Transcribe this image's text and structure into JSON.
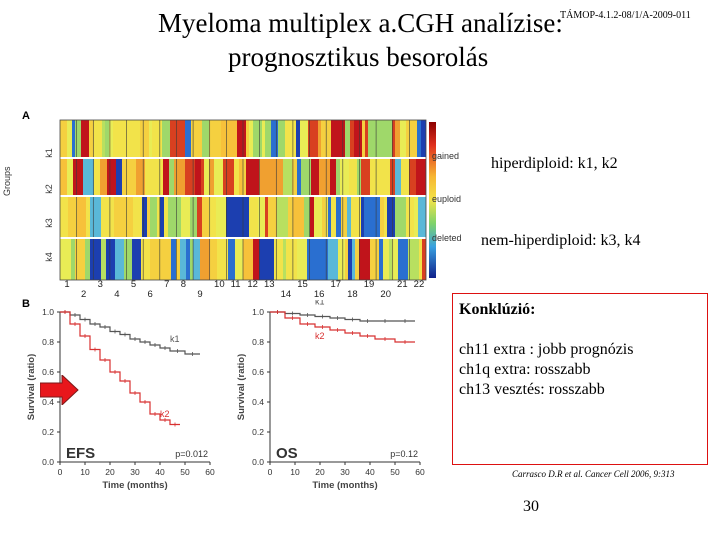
{
  "slide": {
    "title_line1": "Myeloma multiplex a.CGH analízise:",
    "title_line2": "prognosztikus besorolás",
    "project_code": "TÁMOP-4.1.2-08/1/A-2009-011",
    "page_number": "30"
  },
  "annotations": {
    "hyperdiploid": "hiperdiploid: k1, k2",
    "non_hyperdiploid": "nem-hiperdiploid: k3, k4"
  },
  "conclusion": {
    "heading": "Konklúzió:",
    "lines": [
      "ch11 extra : jobb prognózis",
      "ch1q extra: rosszabb",
      "ch13 vesztés: rosszabb"
    ]
  },
  "reference": "Carrasco D.R et al. Cancer Cell 2006, 9:313",
  "panel_a": {
    "letter": "A",
    "ylabel": "Groups",
    "groups": [
      "k1",
      "k2",
      "k3",
      "k4"
    ],
    "legend": [
      "gained",
      "euploid",
      "deleted"
    ],
    "chromosomes": [
      "1",
      "3",
      "5",
      "7",
      "8",
      "10",
      "11",
      "12",
      "13",
      "15",
      "17",
      "19",
      "21",
      "22",
      "2",
      "4",
      "6",
      "9",
      "14",
      "16",
      "18",
      "20"
    ],
    "colors": {
      "gained": "#c0141b",
      "euploid": "#f2e34a",
      "deleted": "#1c3fb0"
    }
  },
  "panel_b": {
    "letter": "B",
    "arrow_color": "#e8171c",
    "km_color_k1": "#555555",
    "km_color_k2": "#d83030"
  },
  "chart_data": [
    {
      "type": "line",
      "title": "EFS",
      "xlabel": "Time (months)",
      "ylabel": "Survival (ratio)",
      "xlim": [
        0,
        60
      ],
      "ylim": [
        0,
        1.0
      ],
      "x_ticks": [
        "0",
        "10",
        "20",
        "30",
        "40",
        "50",
        "60"
      ],
      "y_ticks": [
        "0.0",
        "0.2",
        "0.4",
        "0.6",
        "0.8",
        "1.0"
      ],
      "annotation": "p=0.012",
      "series": [
        {
          "name": "k1",
          "x": [
            0,
            4,
            8,
            12,
            16,
            20,
            24,
            28,
            32,
            36,
            40,
            44,
            50,
            56
          ],
          "y": [
            1.0,
            0.98,
            0.95,
            0.92,
            0.9,
            0.87,
            0.85,
            0.82,
            0.8,
            0.78,
            0.76,
            0.74,
            0.72,
            0.72
          ]
        },
        {
          "name": "k2",
          "x": [
            0,
            4,
            8,
            12,
            16,
            20,
            24,
            28,
            32,
            36,
            40,
            44,
            48
          ],
          "y": [
            1.0,
            0.92,
            0.84,
            0.75,
            0.68,
            0.6,
            0.54,
            0.46,
            0.4,
            0.32,
            0.28,
            0.25,
            0.25
          ]
        }
      ]
    },
    {
      "type": "line",
      "title": "OS",
      "xlabel": "Time (months)",
      "ylabel": "Survival (ratio)",
      "xlim": [
        0,
        60
      ],
      "ylim": [
        0,
        1.0
      ],
      "x_ticks": [
        "0",
        "10",
        "20",
        "30",
        "40",
        "50",
        "60"
      ],
      "y_ticks": [
        "0.0",
        "0.2",
        "0.4",
        "0.6",
        "0.8",
        "1.0"
      ],
      "annotation": "p=0.12",
      "series": [
        {
          "name": "k1",
          "x": [
            0,
            6,
            12,
            18,
            24,
            30,
            36,
            42,
            50,
            58
          ],
          "y": [
            1.0,
            0.99,
            0.98,
            0.97,
            0.96,
            0.95,
            0.94,
            0.94,
            0.94,
            0.94
          ]
        },
        {
          "name": "k2",
          "x": [
            0,
            6,
            12,
            18,
            24,
            30,
            36,
            42,
            50,
            58
          ],
          "y": [
            1.0,
            0.96,
            0.92,
            0.9,
            0.88,
            0.86,
            0.84,
            0.82,
            0.8,
            0.8
          ]
        }
      ]
    }
  ]
}
